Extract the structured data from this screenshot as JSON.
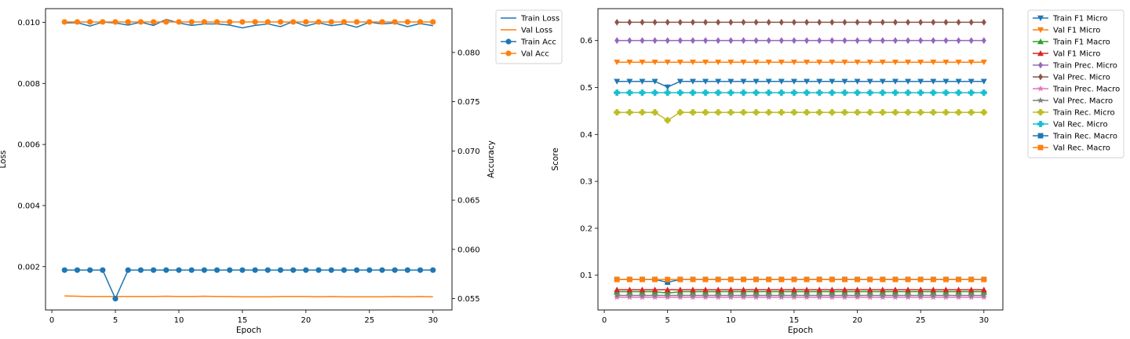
{
  "chart_data": [
    {
      "type": "line",
      "xlabel": "Epoch",
      "ylabel": "Loss",
      "y2label": "Accuracy",
      "xlim": [
        -0.5,
        31.5
      ],
      "ylim": [
        0.00058,
        0.01045
      ],
      "y2lim": [
        0.05385,
        0.08445
      ],
      "xticks": [
        0,
        5,
        10,
        15,
        20,
        25,
        30
      ],
      "yticks": [
        0.002,
        0.004,
        0.006,
        0.008,
        0.01
      ],
      "yticklabels": [
        "0.002",
        "0.004",
        "0.006",
        "0.008",
        "0.010"
      ],
      "y2ticks": [
        0.055,
        0.06,
        0.065,
        0.07,
        0.075,
        0.08
      ],
      "y2ticklabels": [
        "0.055",
        "0.060",
        "0.065",
        "0.070",
        "0.075",
        "0.080"
      ],
      "grid": false,
      "legend": "outside-top-right",
      "x": [
        1,
        2,
        3,
        4,
        5,
        6,
        7,
        8,
        9,
        10,
        11,
        12,
        13,
        14,
        15,
        16,
        17,
        18,
        19,
        20,
        21,
        22,
        23,
        24,
        25,
        26,
        27,
        28,
        29,
        30
      ],
      "series": [
        {
          "name": "Train Loss",
          "axis": "left",
          "color": "#1f77b4",
          "marker": "none",
          "values": [
            0.00998,
            0.00999,
            0.00988,
            0.01001,
            0.00998,
            0.00991,
            0.01001,
            0.0099,
            0.0101,
            0.00998,
            0.0099,
            0.00995,
            0.00995,
            0.00991,
            0.00982,
            0.0099,
            0.00995,
            0.00986,
            0.01003,
            0.00988,
            0.00999,
            0.00989,
            0.00995,
            0.00984,
            0.01001,
            0.00995,
            0.00998,
            0.00986,
            0.00996,
            0.00989
          ]
        },
        {
          "name": "Val Loss",
          "axis": "left",
          "color": "#ff7f0e",
          "marker": "none",
          "values": [
            0.00104,
            0.00103,
            0.00102,
            0.00102,
            0.00102,
            0.00102,
            0.00102,
            0.00102,
            0.00103,
            0.00102,
            0.00102,
            0.00103,
            0.00102,
            0.00102,
            0.00101,
            0.00101,
            0.00101,
            0.00102,
            0.00102,
            0.00102,
            0.00101,
            0.00102,
            0.00101,
            0.00101,
            0.00101,
            0.00101,
            0.00102,
            0.00101,
            0.00102,
            0.00101
          ]
        },
        {
          "name": "Train Acc",
          "axis": "right",
          "color": "#1f77b4",
          "marker": "circle",
          "values": [
            0.0579,
            0.0579,
            0.0579,
            0.0579,
            0.055,
            0.0579,
            0.0579,
            0.0579,
            0.0579,
            0.0579,
            0.0579,
            0.0579,
            0.0579,
            0.0579,
            0.0579,
            0.0579,
            0.0579,
            0.0579,
            0.0579,
            0.0579,
            0.0579,
            0.0579,
            0.0579,
            0.0579,
            0.0579,
            0.0579,
            0.0579,
            0.0579,
            0.0579,
            0.0579
          ]
        },
        {
          "name": "Val Acc",
          "axis": "right",
          "color": "#ff7f0e",
          "marker": "circle",
          "values": [
            0.0831,
            0.0831,
            0.0831,
            0.0831,
            0.0831,
            0.0831,
            0.0831,
            0.0831,
            0.0831,
            0.0831,
            0.0831,
            0.0831,
            0.0831,
            0.0831,
            0.0831,
            0.0831,
            0.0831,
            0.0831,
            0.0831,
            0.0831,
            0.0831,
            0.0831,
            0.0831,
            0.0831,
            0.0831,
            0.0831,
            0.0831,
            0.0831,
            0.0831,
            0.0831
          ]
        }
      ]
    },
    {
      "type": "line",
      "xlabel": "Epoch",
      "ylabel": "Score",
      "xlim": [
        -0.5,
        31.5
      ],
      "ylim": [
        0.026,
        0.668
      ],
      "xticks": [
        0,
        5,
        10,
        15,
        20,
        25,
        30
      ],
      "yticks": [
        0.1,
        0.2,
        0.3,
        0.4,
        0.5,
        0.6
      ],
      "yticklabels": [
        "0.1",
        "0.2",
        "0.3",
        "0.4",
        "0.5",
        "0.6"
      ],
      "grid": false,
      "legend": "outside-top-right",
      "x": [
        1,
        2,
        3,
        4,
        5,
        6,
        7,
        8,
        9,
        10,
        11,
        12,
        13,
        14,
        15,
        16,
        17,
        18,
        19,
        20,
        21,
        22,
        23,
        24,
        25,
        26,
        27,
        28,
        29,
        30
      ],
      "series": [
        {
          "name": "Train F1 Micro",
          "color": "#1f77b4",
          "marker": "triangle-down",
          "values": [
            0.513,
            0.513,
            0.513,
            0.513,
            0.501,
            0.513,
            0.513,
            0.513,
            0.513,
            0.513,
            0.513,
            0.513,
            0.513,
            0.513,
            0.513,
            0.513,
            0.513,
            0.513,
            0.513,
            0.513,
            0.513,
            0.513,
            0.513,
            0.513,
            0.513,
            0.513,
            0.513,
            0.513,
            0.513,
            0.513
          ]
        },
        {
          "name": "Val F1 Micro",
          "color": "#ff7f0e",
          "marker": "triangle-down",
          "values": [
            0.554,
            0.554,
            0.554,
            0.554,
            0.554,
            0.554,
            0.554,
            0.554,
            0.554,
            0.554,
            0.554,
            0.554,
            0.554,
            0.554,
            0.554,
            0.554,
            0.554,
            0.554,
            0.554,
            0.554,
            0.554,
            0.554,
            0.554,
            0.554,
            0.554,
            0.554,
            0.554,
            0.554,
            0.554,
            0.554
          ]
        },
        {
          "name": "Train F1 Macro",
          "color": "#2ca02c",
          "marker": "triangle-up",
          "values": [
            0.065,
            0.065,
            0.065,
            0.065,
            0.062,
            0.065,
            0.065,
            0.065,
            0.065,
            0.065,
            0.065,
            0.065,
            0.065,
            0.065,
            0.065,
            0.065,
            0.065,
            0.065,
            0.065,
            0.065,
            0.065,
            0.065,
            0.065,
            0.065,
            0.065,
            0.065,
            0.065,
            0.065,
            0.065,
            0.065
          ]
        },
        {
          "name": "Val F1 Micro",
          "color": "#d62728",
          "marker": "triangle-up",
          "values": [
            0.069,
            0.069,
            0.069,
            0.069,
            0.069,
            0.069,
            0.069,
            0.069,
            0.069,
            0.069,
            0.069,
            0.069,
            0.069,
            0.069,
            0.069,
            0.069,
            0.069,
            0.069,
            0.069,
            0.069,
            0.069,
            0.069,
            0.069,
            0.069,
            0.069,
            0.069,
            0.069,
            0.069,
            0.069,
            0.069
          ]
        },
        {
          "name": "Train Prec. Micro",
          "color": "#9467bd",
          "marker": "diamond",
          "values": [
            0.6,
            0.6,
            0.6,
            0.6,
            0.6,
            0.6,
            0.6,
            0.6,
            0.6,
            0.6,
            0.6,
            0.6,
            0.6,
            0.6,
            0.6,
            0.6,
            0.6,
            0.6,
            0.6,
            0.6,
            0.6,
            0.6,
            0.6,
            0.6,
            0.6,
            0.6,
            0.6,
            0.6,
            0.6,
            0.6
          ]
        },
        {
          "name": "Val Prec. Micro",
          "color": "#8c564b",
          "marker": "diamond",
          "values": [
            0.639,
            0.639,
            0.639,
            0.639,
            0.639,
            0.639,
            0.639,
            0.639,
            0.639,
            0.639,
            0.639,
            0.639,
            0.639,
            0.639,
            0.639,
            0.639,
            0.639,
            0.639,
            0.639,
            0.639,
            0.639,
            0.639,
            0.639,
            0.639,
            0.639,
            0.639,
            0.639,
            0.639,
            0.639,
            0.639
          ]
        },
        {
          "name": "Train Prec. Macro",
          "color": "#e377c2",
          "marker": "star",
          "values": [
            0.053,
            0.053,
            0.053,
            0.053,
            0.053,
            0.053,
            0.053,
            0.053,
            0.053,
            0.053,
            0.053,
            0.053,
            0.053,
            0.053,
            0.053,
            0.053,
            0.053,
            0.053,
            0.053,
            0.053,
            0.053,
            0.053,
            0.053,
            0.053,
            0.053,
            0.053,
            0.053,
            0.053,
            0.053,
            0.053
          ]
        },
        {
          "name": "Val Prec. Macro",
          "color": "#7f7f7f",
          "marker": "star",
          "values": [
            0.057,
            0.057,
            0.057,
            0.057,
            0.057,
            0.057,
            0.057,
            0.057,
            0.057,
            0.057,
            0.057,
            0.057,
            0.057,
            0.057,
            0.057,
            0.057,
            0.057,
            0.057,
            0.057,
            0.057,
            0.057,
            0.057,
            0.057,
            0.057,
            0.057,
            0.057,
            0.057,
            0.057,
            0.057,
            0.057
          ]
        },
        {
          "name": "Train Rec. Micro",
          "color": "#bcbd22",
          "marker": "plus",
          "values": [
            0.447,
            0.447,
            0.447,
            0.447,
            0.43,
            0.447,
            0.447,
            0.447,
            0.447,
            0.447,
            0.447,
            0.447,
            0.447,
            0.447,
            0.447,
            0.447,
            0.447,
            0.447,
            0.447,
            0.447,
            0.447,
            0.447,
            0.447,
            0.447,
            0.447,
            0.447,
            0.447,
            0.447,
            0.447,
            0.447
          ]
        },
        {
          "name": "Val Rec. Micro",
          "color": "#17becf",
          "marker": "plus",
          "values": [
            0.489,
            0.489,
            0.489,
            0.489,
            0.489,
            0.489,
            0.489,
            0.489,
            0.489,
            0.489,
            0.489,
            0.489,
            0.489,
            0.489,
            0.489,
            0.489,
            0.489,
            0.489,
            0.489,
            0.489,
            0.489,
            0.489,
            0.489,
            0.489,
            0.489,
            0.489,
            0.489,
            0.489,
            0.489,
            0.489
          ]
        },
        {
          "name": "Train Rec. Macro",
          "color": "#1f77b4",
          "marker": "square",
          "values": [
            0.091,
            0.091,
            0.091,
            0.091,
            0.085,
            0.091,
            0.091,
            0.091,
            0.091,
            0.091,
            0.091,
            0.091,
            0.091,
            0.091,
            0.091,
            0.091,
            0.091,
            0.091,
            0.091,
            0.091,
            0.091,
            0.091,
            0.091,
            0.091,
            0.091,
            0.091,
            0.091,
            0.091,
            0.091,
            0.091
          ]
        },
        {
          "name": "Val Rec. Macro",
          "color": "#ff7f0e",
          "marker": "square",
          "values": [
            0.091,
            0.091,
            0.091,
            0.091,
            0.091,
            0.091,
            0.091,
            0.091,
            0.091,
            0.091,
            0.091,
            0.091,
            0.091,
            0.091,
            0.091,
            0.091,
            0.091,
            0.091,
            0.091,
            0.091,
            0.091,
            0.091,
            0.091,
            0.091,
            0.091,
            0.091,
            0.091,
            0.091,
            0.091,
            0.091
          ]
        }
      ]
    }
  ]
}
